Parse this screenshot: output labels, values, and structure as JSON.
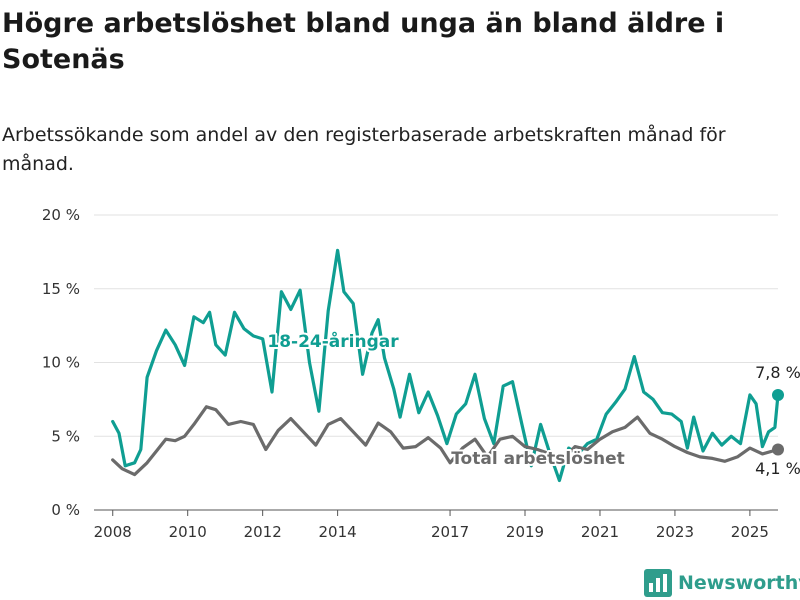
{
  "title": "Högre arbetslöshet bland unga än bland äldre i Sotenäs",
  "subtitle": "Arbetssökande som andel av den registerbaserade arbetskraften månad för månad.",
  "brand": "Newsworthy",
  "colors": {
    "young": "#0f9e92",
    "total": "#6b6b6b",
    "brand": "#2f9d8c"
  },
  "chart_data": {
    "type": "line",
    "x_ticks": [
      "2008",
      "2010",
      "2012",
      "2014",
      "2017",
      "2019",
      "2021",
      "2023",
      "2025"
    ],
    "y_ticks": [
      "0 %",
      "5 %",
      "10 %",
      "15 %",
      "20 %"
    ],
    "ylim": [
      0,
      20
    ],
    "xlim": [
      "2007-07",
      "2025-10"
    ],
    "grid": true,
    "series": [
      {
        "name": "18-24-åringar",
        "color": "#0f9e92",
        "points": [
          [
            "2008-01",
            6.0
          ],
          [
            "2008-03",
            5.2
          ],
          [
            "2008-05",
            3.0
          ],
          [
            "2008-08",
            3.2
          ],
          [
            "2008-10",
            4.1
          ],
          [
            "2008-12",
            9.0
          ],
          [
            "2009-03",
            10.8
          ],
          [
            "2009-06",
            12.2
          ],
          [
            "2009-09",
            11.2
          ],
          [
            "2009-12",
            9.8
          ],
          [
            "2010-03",
            13.1
          ],
          [
            "2010-06",
            12.7
          ],
          [
            "2010-08",
            13.4
          ],
          [
            "2010-10",
            11.2
          ],
          [
            "2011-01",
            10.5
          ],
          [
            "2011-04",
            13.4
          ],
          [
            "2011-07",
            12.3
          ],
          [
            "2011-10",
            11.8
          ],
          [
            "2012-01",
            11.6
          ],
          [
            "2012-04",
            8.0
          ],
          [
            "2012-07",
            14.8
          ],
          [
            "2012-10",
            13.6
          ],
          [
            "2013-01",
            14.9
          ],
          [
            "2013-04",
            10.0
          ],
          [
            "2013-07",
            6.7
          ],
          [
            "2013-10",
            13.5
          ],
          [
            "2014-01",
            17.6
          ],
          [
            "2014-03",
            14.8
          ],
          [
            "2014-06",
            14.0
          ],
          [
            "2014-09",
            9.2
          ],
          [
            "2014-12",
            12.0
          ],
          [
            "2015-02",
            12.9
          ],
          [
            "2015-04",
            10.3
          ],
          [
            "2015-07",
            8.2
          ],
          [
            "2015-09",
            6.3
          ],
          [
            "2015-12",
            9.2
          ],
          [
            "2016-03",
            6.6
          ],
          [
            "2016-06",
            8.0
          ],
          [
            "2016-09",
            6.4
          ],
          [
            "2016-12",
            4.5
          ],
          [
            "2017-03",
            6.5
          ],
          [
            "2017-06",
            7.2
          ],
          [
            "2017-09",
            9.2
          ],
          [
            "2017-12",
            6.2
          ],
          [
            "2018-03",
            4.5
          ],
          [
            "2018-06",
            8.4
          ],
          [
            "2018-09",
            8.7
          ],
          [
            "2018-12",
            5.8
          ],
          [
            "2019-03",
            3.0
          ],
          [
            "2019-06",
            5.8
          ],
          [
            "2019-09",
            3.8
          ],
          [
            "2019-12",
            2.0
          ],
          [
            "2020-03",
            4.2
          ],
          [
            "2020-06",
            3.8
          ],
          [
            "2020-09",
            4.5
          ],
          [
            "2020-12",
            4.8
          ],
          [
            "2021-03",
            6.5
          ],
          [
            "2021-06",
            7.3
          ],
          [
            "2021-09",
            8.2
          ],
          [
            "2021-12",
            10.4
          ],
          [
            "2022-03",
            8.0
          ],
          [
            "2022-06",
            7.5
          ],
          [
            "2022-09",
            6.6
          ],
          [
            "2022-12",
            6.5
          ],
          [
            "2023-03",
            6.0
          ],
          [
            "2023-05",
            4.2
          ],
          [
            "2023-07",
            6.3
          ],
          [
            "2023-10",
            4.0
          ],
          [
            "2024-01",
            5.2
          ],
          [
            "2024-04",
            4.4
          ],
          [
            "2024-07",
            5.0
          ],
          [
            "2024-10",
            4.5
          ],
          [
            "2025-01",
            7.8
          ],
          [
            "2025-03",
            7.2
          ],
          [
            "2025-05",
            4.3
          ],
          [
            "2025-07",
            5.3
          ],
          [
            "2025-09",
            5.6
          ],
          [
            "2025-10",
            7.8
          ]
        ],
        "end_value": "7,8 %"
      },
      {
        "name": "Total arbetslöshet",
        "color": "#6b6b6b",
        "points": [
          [
            "2008-01",
            3.4
          ],
          [
            "2008-04",
            2.8
          ],
          [
            "2008-08",
            2.4
          ],
          [
            "2008-12",
            3.2
          ],
          [
            "2009-03",
            4.0
          ],
          [
            "2009-06",
            4.8
          ],
          [
            "2009-09",
            4.7
          ],
          [
            "2009-12",
            5.0
          ],
          [
            "2010-03",
            5.8
          ],
          [
            "2010-07",
            7.0
          ],
          [
            "2010-10",
            6.8
          ],
          [
            "2011-02",
            5.8
          ],
          [
            "2011-06",
            6.0
          ],
          [
            "2011-10",
            5.8
          ],
          [
            "2012-02",
            4.1
          ],
          [
            "2012-06",
            5.4
          ],
          [
            "2012-10",
            6.2
          ],
          [
            "2013-02",
            5.3
          ],
          [
            "2013-06",
            4.4
          ],
          [
            "2013-10",
            5.8
          ],
          [
            "2014-02",
            6.2
          ],
          [
            "2014-06",
            5.3
          ],
          [
            "2014-10",
            4.4
          ],
          [
            "2015-02",
            5.9
          ],
          [
            "2015-06",
            5.3
          ],
          [
            "2015-10",
            4.2
          ],
          [
            "2016-02",
            4.3
          ],
          [
            "2016-06",
            4.9
          ],
          [
            "2016-10",
            4.2
          ],
          [
            "2017-01",
            3.2
          ],
          [
            "2017-05",
            4.2
          ],
          [
            "2017-09",
            4.8
          ],
          [
            "2018-01",
            3.6
          ],
          [
            "2018-05",
            4.8
          ],
          [
            "2018-09",
            5.0
          ],
          [
            "2019-01",
            4.3
          ],
          [
            "2019-05",
            4.1
          ],
          [
            "2019-09",
            3.8
          ],
          [
            "2020-01",
            3.4
          ],
          [
            "2020-05",
            4.3
          ],
          [
            "2020-09",
            4.1
          ],
          [
            "2021-01",
            4.8
          ],
          [
            "2021-05",
            5.3
          ],
          [
            "2021-09",
            5.6
          ],
          [
            "2022-01",
            6.3
          ],
          [
            "2022-05",
            5.2
          ],
          [
            "2022-09",
            4.8
          ],
          [
            "2023-01",
            4.3
          ],
          [
            "2023-05",
            3.9
          ],
          [
            "2023-09",
            3.6
          ],
          [
            "2024-01",
            3.5
          ],
          [
            "2024-05",
            3.3
          ],
          [
            "2024-09",
            3.6
          ],
          [
            "2025-01",
            4.2
          ],
          [
            "2025-05",
            3.8
          ],
          [
            "2025-10",
            4.1
          ]
        ],
        "end_value": "4,1 %"
      }
    ]
  }
}
